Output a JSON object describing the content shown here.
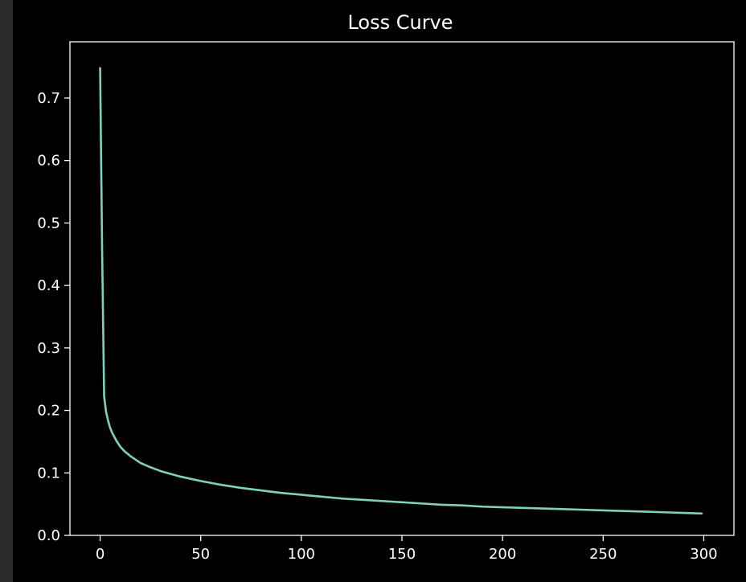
{
  "chart_data": {
    "type": "line",
    "title": "Loss Curve",
    "xlabel": "",
    "ylabel": "",
    "xlim": [
      -15,
      315
    ],
    "ylim": [
      0.0,
      0.79
    ],
    "x_ticks": [
      0,
      50,
      100,
      150,
      200,
      250,
      300
    ],
    "y_ticks": [
      0.0,
      0.1,
      0.2,
      0.3,
      0.4,
      0.5,
      0.6,
      0.7
    ],
    "y_tick_labels": [
      "0.0",
      "0.1",
      "0.2",
      "0.3",
      "0.4",
      "0.5",
      "0.6",
      "0.7"
    ],
    "grid": false,
    "series": [
      {
        "color": "#7fd1bf",
        "x": [
          0,
          1,
          2,
          3,
          4,
          5,
          6,
          8,
          10,
          12,
          15,
          20,
          25,
          30,
          40,
          50,
          60,
          70,
          80,
          90,
          100,
          110,
          120,
          130,
          140,
          150,
          160,
          170,
          180,
          190,
          200,
          210,
          220,
          230,
          240,
          250,
          260,
          270,
          280,
          290,
          299
        ],
        "y": [
          0.748,
          0.455,
          0.222,
          0.197,
          0.183,
          0.172,
          0.164,
          0.152,
          0.142,
          0.135,
          0.127,
          0.116,
          0.109,
          0.103,
          0.094,
          0.087,
          0.081,
          0.076,
          0.072,
          0.068,
          0.065,
          0.062,
          0.059,
          0.057,
          0.055,
          0.053,
          0.051,
          0.049,
          0.048,
          0.046,
          0.045,
          0.044,
          0.043,
          0.042,
          0.041,
          0.04,
          0.039,
          0.038,
          0.037,
          0.036,
          0.035
        ]
      }
    ]
  }
}
